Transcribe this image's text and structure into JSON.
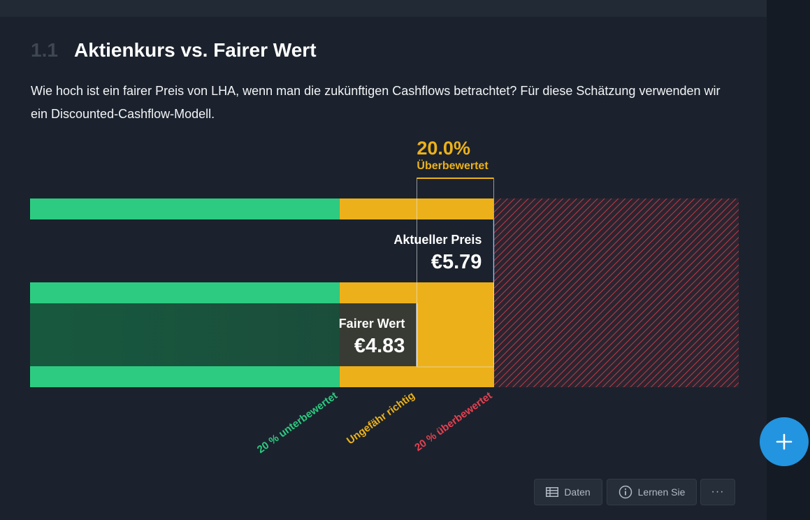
{
  "section": {
    "number": "1.1",
    "title": "Aktienkurs vs. Fairer Wert",
    "description": "Wie hoch ist ein fairer Preis von LHA, wenn man die zukünftigen Cashflows betrachtet? Für diese Schätzung verwenden wir ein Discounted-Cashflow-Modell."
  },
  "chart_data": {
    "type": "bar",
    "current_price": {
      "label": "Aktueller Preis",
      "value": 5.79,
      "display": "€5.79"
    },
    "fair_value": {
      "label": "Fairer Wert",
      "value": 4.83,
      "display": "€4.83"
    },
    "valuation": {
      "percent_label": "20.0%",
      "status_label": "Überbewertet",
      "percent": 20.0
    },
    "zones": [
      {
        "label": "20 % unterbewertet",
        "from": 0,
        "to": 3.864,
        "color": "#2dcb81"
      },
      {
        "label": "Ungefähr richtig",
        "from": 3.864,
        "to": 5.796,
        "color": "#ecb11a"
      },
      {
        "label": "20 % überbewertet",
        "from": 5.796,
        "to": 8.85,
        "color": "#e64050"
      }
    ],
    "xlim": [
      0,
      8.85
    ],
    "colors": {
      "green": "#2dcb81",
      "yellow": "#ecb11a",
      "red": "#e64050",
      "accent_text": "#ecb11a"
    }
  },
  "toolbar": {
    "data_label": "Daten",
    "data_icon": "table-icon",
    "learn_label": "Lernen Sie",
    "learn_icon": "info-icon",
    "more_label": "···",
    "more_icon": "more-icon"
  },
  "fab": {
    "icon": "plus-icon",
    "color": "#2394e0"
  }
}
